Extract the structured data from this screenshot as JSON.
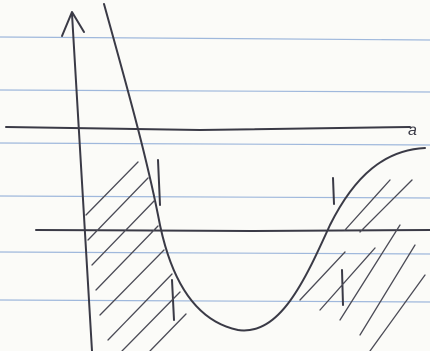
{
  "sketch": {
    "axis_label": "a"
  }
}
